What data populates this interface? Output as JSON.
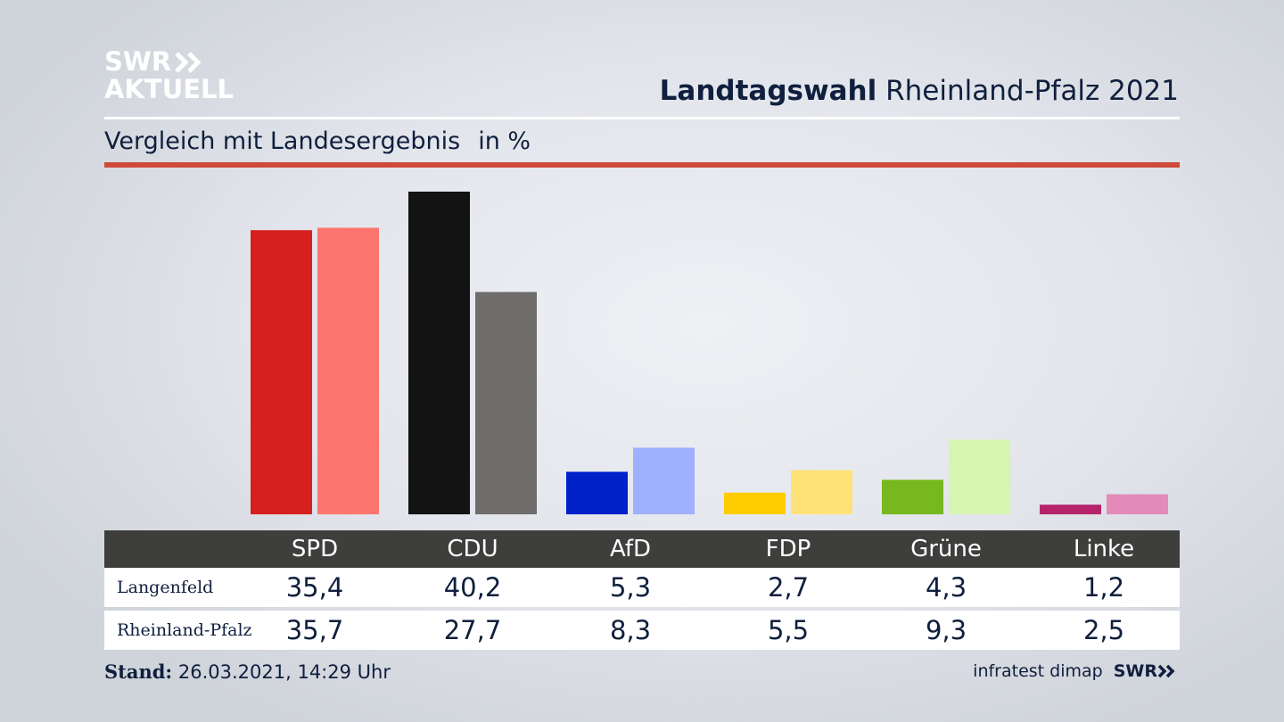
{
  "branding": {
    "logo_line1": "SWR",
    "logo_line2": "AKTUELL",
    "footer_logo": "SWR"
  },
  "header": {
    "title_bold": "Landtagswahl",
    "title_rest": "Rheinland-Pfalz 2021",
    "subtitle": "Vergleich mit Landesergebnis",
    "unit": "in %"
  },
  "footer": {
    "stand_label": "Stand:",
    "stand_value": "26.03.2021, 14:29 Uhr",
    "source": "infratest dimap"
  },
  "colors": {
    "SPD": [
      "#d6201f",
      "#ff7570"
    ],
    "CDU": [
      "#131313",
      "#6f6d6b"
    ],
    "AfD": [
      "#0020c8",
      "#9fb0ff"
    ],
    "FDP": [
      "#ffcc00",
      "#ffe277"
    ],
    "Grüne": [
      "#76b81e",
      "#d6f5b0"
    ],
    "Linke": [
      "#b5236b",
      "#e38ab9"
    ]
  },
  "chart_data": {
    "type": "bar",
    "categories": [
      "SPD",
      "CDU",
      "AfD",
      "FDP",
      "Grüne",
      "Linke"
    ],
    "series": [
      {
        "name": "Langenfeld",
        "values": [
          35.4,
          40.2,
          5.3,
          2.7,
          4.3,
          1.2
        ],
        "labels": [
          "35,4",
          "40,2",
          "5,3",
          "2,7",
          "4,3",
          "1,2"
        ]
      },
      {
        "name": "Rheinland-Pfalz",
        "values": [
          35.7,
          27.7,
          8.3,
          5.5,
          9.3,
          2.5
        ],
        "labels": [
          "35,7",
          "27,7",
          "8,3",
          "5,5",
          "9,3",
          "2,5"
        ]
      }
    ],
    "ylim": [
      0,
      40.2
    ],
    "grid": false,
    "legend": "table below chart"
  }
}
